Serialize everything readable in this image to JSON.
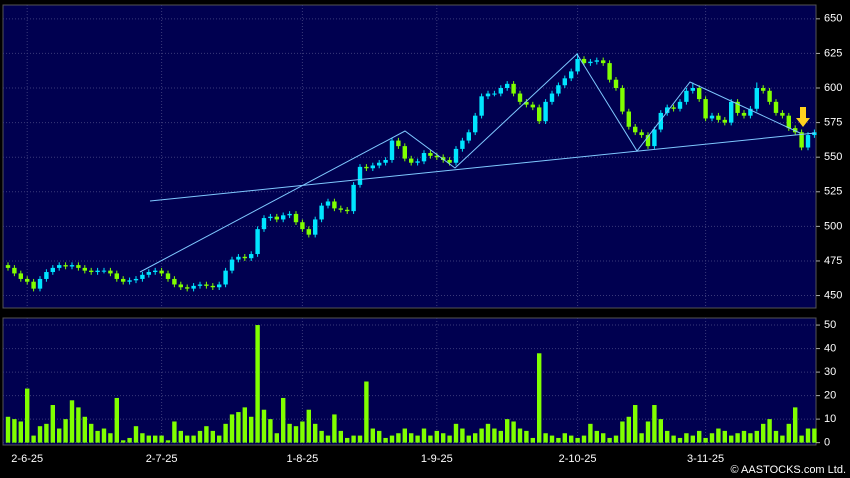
{
  "chart_data": [
    {
      "type": "candlestick",
      "categories": [
        null,
        null,
        null,
        "2-6-25",
        null,
        null,
        null,
        null,
        null,
        null,
        null,
        null,
        null,
        null,
        null,
        null,
        null,
        null,
        null,
        null,
        null,
        null,
        null,
        null,
        "2-7-25",
        null,
        null,
        null,
        null,
        null,
        null,
        null,
        null,
        null,
        null,
        null,
        null,
        null,
        null,
        null,
        null,
        null,
        null,
        null,
        null,
        null,
        "1-8-25",
        null,
        null,
        null,
        null,
        null,
        null,
        null,
        null,
        null,
        null,
        null,
        null,
        null,
        null,
        null,
        null,
        null,
        null,
        null,
        null,
        "1-9-25",
        null,
        null,
        null,
        null,
        null,
        null,
        null,
        null,
        null,
        null,
        null,
        null,
        null,
        null,
        null,
        null,
        null,
        null,
        null,
        null,
        null,
        "2-10-25",
        null,
        null,
        null,
        null,
        null,
        null,
        null,
        null,
        null,
        null,
        null,
        null,
        null,
        null,
        null,
        null,
        null,
        null,
        null,
        "3-11-25",
        null,
        null,
        null,
        null,
        null,
        null,
        null,
        null,
        null,
        null,
        null,
        null,
        null,
        null,
        null,
        null,
        null
      ],
      "open": [
        472,
        470,
        466,
        462,
        460,
        455,
        462,
        467,
        470,
        472,
        471,
        472,
        470,
        468,
        467,
        468,
        468,
        466,
        462,
        460,
        461,
        462,
        465,
        467,
        468,
        466,
        462,
        458,
        456,
        455,
        457,
        458,
        457,
        456,
        458,
        468,
        476,
        478,
        477,
        480,
        498,
        506,
        507,
        505,
        508,
        509,
        503,
        498,
        494,
        505,
        515,
        518,
        513,
        512,
        511,
        530,
        543,
        542,
        544,
        546,
        548,
        562,
        558,
        549,
        546,
        547,
        553,
        551,
        550,
        548,
        546,
        556,
        562,
        568,
        580,
        594,
        596,
        596,
        600,
        603,
        596,
        590,
        588,
        586,
        576,
        590,
        596,
        602,
        607,
        612,
        621,
        618,
        619,
        620,
        618,
        606,
        600,
        583,
        572,
        568,
        566,
        558,
        570,
        582,
        586,
        585,
        590,
        598,
        600,
        592,
        578,
        580,
        577,
        575,
        590,
        582,
        580,
        585,
        600,
        598,
        590,
        582,
        580,
        571,
        568,
        557,
        566
      ],
      "high": [
        474,
        472,
        468,
        464,
        462,
        464,
        469,
        472,
        474,
        474,
        474,
        474,
        472,
        470,
        470,
        470,
        470,
        468,
        464,
        463,
        464,
        467,
        469,
        470,
        470,
        468,
        464,
        460,
        458,
        459,
        460,
        460,
        459,
        460,
        470,
        478,
        480,
        480,
        482,
        500,
        508,
        509,
        509,
        510,
        511,
        511,
        505,
        500,
        507,
        517,
        520,
        520,
        515,
        514,
        532,
        545,
        545,
        546,
        548,
        550,
        564,
        564,
        560,
        551,
        549,
        555,
        555,
        553,
        552,
        550,
        558,
        564,
        570,
        582,
        596,
        598,
        598,
        602,
        605,
        605,
        598,
        592,
        590,
        588,
        592,
        598,
        604,
        609,
        614,
        625,
        623,
        621,
        622,
        622,
        620,
        608,
        602,
        585,
        574,
        570,
        568,
        572,
        584,
        588,
        588,
        592,
        600,
        604,
        602,
        594,
        582,
        582,
        579,
        592,
        592,
        584,
        587,
        604,
        602,
        600,
        592,
        584,
        582,
        573,
        570,
        568,
        570
      ],
      "low": [
        468,
        464,
        460,
        458,
        453,
        453,
        460,
        465,
        468,
        469,
        469,
        468,
        466,
        465,
        465,
        466,
        464,
        460,
        458,
        458,
        459,
        460,
        463,
        465,
        464,
        460,
        456,
        454,
        453,
        453,
        455,
        455,
        454,
        454,
        456,
        466,
        474,
        475,
        475,
        478,
        496,
        504,
        503,
        503,
        506,
        501,
        496,
        492,
        492,
        503,
        513,
        511,
        510,
        509,
        509,
        528,
        540,
        540,
        542,
        544,
        546,
        556,
        547,
        544,
        544,
        545,
        549,
        548,
        546,
        544,
        544,
        554,
        560,
        566,
        578,
        592,
        594,
        594,
        598,
        594,
        588,
        586,
        584,
        574,
        574,
        588,
        594,
        600,
        605,
        610,
        616,
        616,
        617,
        616,
        604,
        598,
        581,
        570,
        566,
        564,
        556,
        556,
        568,
        580,
        583,
        583,
        588,
        596,
        590,
        576,
        576,
        575,
        573,
        573,
        580,
        578,
        578,
        583,
        596,
        588,
        580,
        578,
        569,
        566,
        555,
        555,
        564
      ],
      "close": [
        470,
        466,
        462,
        460,
        455,
        462,
        467,
        470,
        472,
        471,
        472,
        470,
        468,
        467,
        468,
        468,
        466,
        462,
        460,
        461,
        462,
        465,
        467,
        468,
        466,
        462,
        458,
        456,
        455,
        457,
        458,
        457,
        456,
        458,
        468,
        476,
        478,
        477,
        480,
        498,
        506,
        507,
        505,
        508,
        509,
        503,
        498,
        494,
        505,
        515,
        518,
        513,
        512,
        511,
        530,
        543,
        542,
        544,
        546,
        548,
        562,
        558,
        549,
        546,
        547,
        553,
        551,
        550,
        548,
        546,
        556,
        562,
        568,
        580,
        594,
        596,
        596,
        600,
        603,
        596,
        590,
        588,
        586,
        576,
        590,
        596,
        602,
        607,
        612,
        621,
        618,
        619,
        620,
        618,
        606,
        600,
        583,
        572,
        568,
        566,
        558,
        570,
        582,
        586,
        585,
        590,
        598,
        600,
        592,
        578,
        580,
        577,
        575,
        590,
        582,
        580,
        585,
        600,
        598,
        590,
        582,
        580,
        571,
        568,
        557,
        566,
        568
      ],
      "up_color": "#00e5ff",
      "down_color": "#80ff00",
      "ylim": [
        441,
        660
      ],
      "yticks": [
        450,
        475,
        500,
        525,
        550,
        575,
        600,
        625,
        650
      ],
      "grid": true
    },
    {
      "type": "bar",
      "values": [
        11,
        10,
        9,
        23,
        3,
        7,
        8,
        16,
        6,
        10,
        18,
        15,
        11,
        8,
        5,
        6,
        4,
        19,
        1,
        2,
        7,
        4,
        3,
        3,
        3,
        1,
        9,
        5,
        3,
        3,
        5,
        7,
        5,
        3,
        8,
        12,
        13,
        15,
        11,
        50,
        14,
        10,
        4,
        19,
        8,
        7,
        9,
        14,
        8,
        5,
        3,
        12,
        5,
        2,
        3,
        3,
        26,
        6,
        5,
        2,
        3,
        4,
        6,
        4,
        3,
        6,
        3,
        5,
        4,
        3,
        8,
        6,
        3,
        4,
        6,
        8,
        6,
        5,
        10,
        9,
        6,
        5,
        2,
        38,
        4,
        3,
        2,
        4,
        3,
        2,
        3,
        8,
        5,
        4,
        2,
        3,
        9,
        11,
        16,
        4,
        9,
        16,
        10,
        5,
        3,
        2,
        4,
        3,
        5,
        2,
        4,
        6,
        5,
        3,
        4,
        5,
        4,
        5,
        8,
        10,
        5,
        3,
        8,
        15,
        3,
        6,
        6
      ],
      "color": "#80ff00",
      "ylim": [
        -1,
        53
      ],
      "yticks": [
        0,
        10,
        20,
        30,
        40,
        50
      ],
      "grid": true
    }
  ],
  "copyright": "© AASTOCKS.com Ltd."
}
